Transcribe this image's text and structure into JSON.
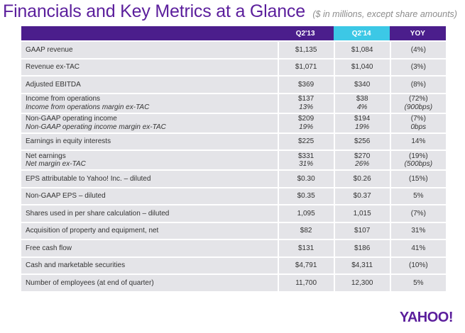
{
  "header": {
    "title": "Financials and Key Metrics at a Glance",
    "subtitle": "($ in millions, except share amounts)"
  },
  "table": {
    "columns": [
      "",
      "Q2'13",
      "Q2'14",
      "YOY"
    ],
    "rows": [
      {
        "label": "GAAP revenue",
        "q213": "$1,135",
        "q214": "$1,084",
        "yoy": "(4%)"
      },
      {
        "label": "Revenue ex-TAC",
        "q213": "$1,071",
        "q214": "$1,040",
        "yoy": "(3%)"
      },
      {
        "label": "Adjusted EBITDA",
        "q213": "$369",
        "q214": "$340",
        "yoy": "(8%)"
      },
      {
        "label": "Income from operations",
        "sublabel": "Income from operations margin ex-TAC",
        "q213": "$137",
        "q213_sub": "13%",
        "q214": "$38",
        "q214_sub": "4%",
        "yoy": "(72%)",
        "yoy_sub": "(900bps)"
      },
      {
        "label": "Non-GAAP operating income",
        "sublabel": "Non-GAAP operating income margin ex-TAC",
        "q213": "$209",
        "q213_sub": "19%",
        "q214": "$194",
        "q214_sub": "19%",
        "yoy": "(7%)",
        "yoy_sub": "0bps"
      },
      {
        "label": "Earnings in equity interests",
        "q213": "$225",
        "q214": "$256",
        "yoy": "14%"
      },
      {
        "label": "Net earnings",
        "sublabel": "Net margin ex-TAC",
        "q213": "$331",
        "q213_sub": "31%",
        "q214": "$270",
        "q214_sub": "26%",
        "yoy": "(19%)",
        "yoy_sub": "(500bps)"
      },
      {
        "label": "EPS attributable to Yahoo! Inc. – diluted",
        "q213": "$0.30",
        "q214": "$0.26",
        "yoy": "(15%)"
      },
      {
        "label": "Non-GAAP EPS – diluted",
        "q213": "$0.35",
        "q214": "$0.37",
        "yoy": "5%"
      },
      {
        "label": "Shares used in per share calculation – diluted",
        "q213": "1,095",
        "q214": "1,015",
        "yoy": "(7%)"
      },
      {
        "label": "Acquisition of property and equipment, net",
        "q213": "$82",
        "q214": "$107",
        "yoy": "31%"
      },
      {
        "label": "Free cash flow",
        "q213": "$131",
        "q214": "$186",
        "yoy": "41%"
      },
      {
        "label": "Cash and marketable securities",
        "q213": "$4,791",
        "q214": "$4,311",
        "yoy": "(10%)"
      },
      {
        "label": "Number of employees (at end of quarter)",
        "q213": "11,700",
        "q214": "12,300",
        "yoy": "5%"
      }
    ]
  },
  "logo": {
    "text": "YAHOO!"
  },
  "colors": {
    "brand_purple": "#4b1e8c",
    "accent_cyan": "#3cc8e6",
    "row_gray": "#e4e4e8"
  }
}
